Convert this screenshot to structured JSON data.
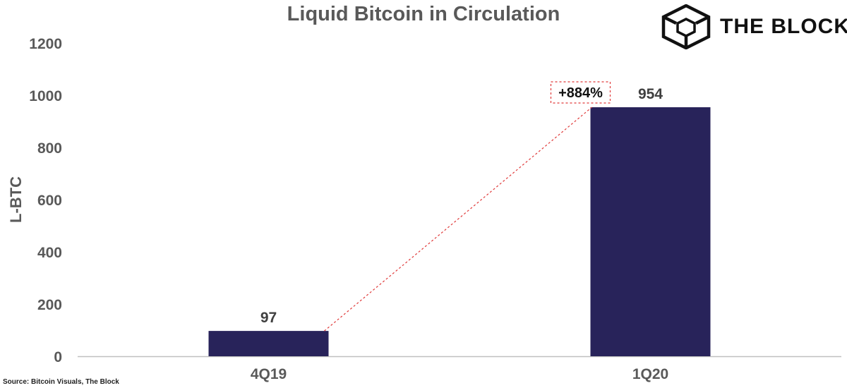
{
  "brand": {
    "name": "THE BLOCK",
    "logo_icon": "cube-icon"
  },
  "source": "Source: Bitcoin Visuals, The Block",
  "chart_data": {
    "type": "bar",
    "title": "Liquid Bitcoin in Circulation",
    "xlabel": "",
    "ylabel": "L-BTC",
    "categories": [
      "4Q19",
      "1Q20"
    ],
    "values": [
      97,
      954
    ],
    "data_labels": [
      "97",
      "954"
    ],
    "ylim": [
      0,
      1200
    ],
    "yticks": [
      0,
      200,
      400,
      600,
      800,
      1000,
      1200
    ],
    "grid": false,
    "legend": "none",
    "bar_color": "#28235a",
    "annotation": {
      "text": "+884%",
      "from_category": "4Q19",
      "to_category": "1Q20",
      "style": "dashed-red-connector",
      "color": "#e03a3a"
    }
  }
}
